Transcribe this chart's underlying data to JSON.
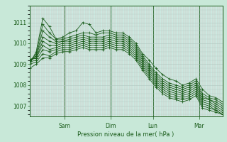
{
  "bg_color": "#c8e8d8",
  "plot_bg_color": "#cce8e0",
  "line_color": "#1a5c1a",
  "marker_color": "#1a5c1a",
  "xlabel": "Pression niveau de la mer( hPa )",
  "ylim": [
    1006.5,
    1011.8
  ],
  "yticks": [
    1007,
    1008,
    1009,
    1010,
    1011
  ],
  "day_labels": [
    "Sam",
    "Dim",
    "Lun",
    "Mar"
  ],
  "day_positions": [
    0.18,
    0.42,
    0.64,
    0.88
  ],
  "series": [
    [
      1009.0,
      1009.6,
      1011.2,
      1010.8,
      1010.2,
      1010.3,
      1010.5,
      1010.6,
      1011.0,
      1010.9,
      1010.5,
      1010.6,
      1010.6,
      1010.5,
      1010.5,
      1010.3,
      1010.0,
      1009.5,
      1009.2,
      1008.8,
      1008.5,
      1008.3,
      1008.2,
      1008.0,
      1008.1,
      1008.3,
      1007.8,
      1007.5,
      1007.4,
      1007.2
    ],
    [
      1009.1,
      1009.5,
      1010.9,
      1010.5,
      1010.2,
      1010.2,
      1010.3,
      1010.4,
      1010.5,
      1010.5,
      1010.4,
      1010.5,
      1010.5,
      1010.4,
      1010.4,
      1010.2,
      1009.9,
      1009.4,
      1009.0,
      1008.6,
      1008.3,
      1008.1,
      1008.0,
      1007.9,
      1008.0,
      1008.2,
      1007.6,
      1007.4,
      1007.3,
      1007.1
    ],
    [
      1009.1,
      1009.4,
      1010.6,
      1010.3,
      1010.1,
      1010.1,
      1010.2,
      1010.3,
      1010.4,
      1010.3,
      1010.3,
      1010.3,
      1010.4,
      1010.3,
      1010.3,
      1010.1,
      1009.8,
      1009.3,
      1008.9,
      1008.5,
      1008.2,
      1008.0,
      1007.9,
      1007.8,
      1007.9,
      1008.1,
      1007.5,
      1007.3,
      1007.2,
      1007.0
    ],
    [
      1009.2,
      1009.4,
      1010.3,
      1010.1,
      1010.0,
      1010.1,
      1010.1,
      1010.2,
      1010.3,
      1010.2,
      1010.2,
      1010.2,
      1010.3,
      1010.2,
      1010.2,
      1010.0,
      1009.7,
      1009.2,
      1008.8,
      1008.4,
      1008.1,
      1007.9,
      1007.8,
      1007.7,
      1007.8,
      1008.0,
      1007.4,
      1007.3,
      1007.1,
      1006.9
    ],
    [
      1009.2,
      1009.3,
      1010.1,
      1009.9,
      1009.9,
      1010.0,
      1010.0,
      1010.1,
      1010.2,
      1010.1,
      1010.1,
      1010.1,
      1010.2,
      1010.1,
      1010.1,
      1009.9,
      1009.6,
      1009.1,
      1008.7,
      1008.3,
      1008.0,
      1007.8,
      1007.7,
      1007.6,
      1007.7,
      1007.9,
      1007.3,
      1007.2,
      1007.0,
      1006.8
    ],
    [
      1009.2,
      1009.3,
      1009.9,
      1009.7,
      1009.8,
      1009.9,
      1009.9,
      1010.0,
      1010.1,
      1010.0,
      1010.0,
      1010.0,
      1010.1,
      1010.0,
      1010.0,
      1009.8,
      1009.5,
      1009.0,
      1008.6,
      1008.2,
      1007.9,
      1007.7,
      1007.6,
      1007.5,
      1007.6,
      1007.8,
      1007.2,
      1007.1,
      1006.9,
      1006.7
    ],
    [
      1009.1,
      1009.2,
      1009.7,
      1009.6,
      1009.7,
      1009.8,
      1009.8,
      1009.9,
      1010.0,
      1009.9,
      1009.9,
      1009.9,
      1010.0,
      1009.9,
      1009.9,
      1009.7,
      1009.4,
      1008.9,
      1008.5,
      1008.1,
      1007.8,
      1007.6,
      1007.5,
      1007.4,
      1007.5,
      1007.7,
      1007.1,
      1007.0,
      1006.8,
      1006.6
    ],
    [
      1009.0,
      1009.1,
      1009.5,
      1009.4,
      1009.6,
      1009.7,
      1009.7,
      1009.8,
      1009.9,
      1009.8,
      1009.8,
      1009.8,
      1009.9,
      1009.8,
      1009.8,
      1009.6,
      1009.3,
      1008.8,
      1008.4,
      1008.0,
      1007.7,
      1007.5,
      1007.4,
      1007.3,
      1007.4,
      1007.6,
      1007.0,
      1006.9,
      1006.8,
      1006.6
    ],
    [
      1008.8,
      1009.0,
      1009.3,
      1009.3,
      1009.5,
      1009.6,
      1009.6,
      1009.7,
      1009.8,
      1009.7,
      1009.7,
      1009.7,
      1009.8,
      1009.7,
      1009.7,
      1009.5,
      1009.2,
      1008.7,
      1008.3,
      1007.9,
      1007.6,
      1007.4,
      1007.3,
      1007.2,
      1007.3,
      1007.5,
      1006.9,
      1006.8,
      1006.7,
      1006.6
    ]
  ]
}
